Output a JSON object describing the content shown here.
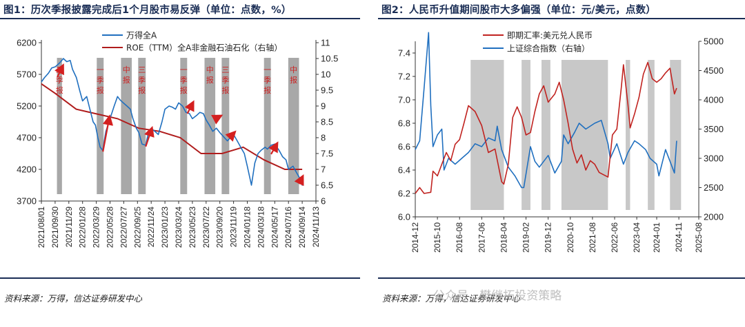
{
  "chart1": {
    "title": "图1：历次季报披露完成后1个月股市易反弹（单位：点数，%）",
    "source": "资料来源：万得，信达证券研发中心",
    "chart_data": {
      "type": "line",
      "legend": [
        "万得全A",
        "ROE（TTM）全A非金融石油石化（右轴）"
      ],
      "legend_position": "top-right",
      "colors": {
        "wind": "#1f6fbf",
        "roe": "#b01c1c",
        "band": "#a8a8a8",
        "arrow": "#d42020"
      },
      "ylim_left": [
        3700,
        6200
      ],
      "yticks_left": [
        "6200",
        "5700",
        "5200",
        "4700",
        "4200",
        "3700"
      ],
      "ytick_values_left": [
        6200,
        5700,
        5200,
        4700,
        4200,
        3700
      ],
      "ylim_right": [
        6,
        11
      ],
      "yticks_right": [
        "11",
        "10.5",
        "10",
        "9.5",
        "9",
        "8.5",
        "8",
        "7.5",
        "7",
        "6.5",
        "6"
      ],
      "ytick_values_right": [
        11,
        10.5,
        10,
        9.5,
        9,
        8.5,
        8,
        7.5,
        7,
        6.5,
        6
      ],
      "xlim": [
        "2021/08/01",
        "2024/11/13"
      ],
      "xticks": [
        "2021/08/01",
        "2021/09/30",
        "2021/11/29",
        "2022/01/28",
        "2022/03/29",
        "2022/05/28",
        "2022/07/27",
        "2022/09/25",
        "2022/11/24",
        "2023/01/23",
        "2023/03/24",
        "2023/05/23",
        "2023/07/22",
        "2023/09/20",
        "2023/11/19",
        "2024/01/18",
        "2024/03/18",
        "2024/05/17",
        "2024/07/16",
        "2024/09/14",
        "2024/11/13"
      ],
      "report_bands": [
        {
          "start": "2021/10/08",
          "end": "2021/10/30",
          "label": "三季报"
        },
        {
          "start": "2022/03/31",
          "end": "2022/04/30",
          "label": "一季报"
        },
        {
          "start": "2022/07/15",
          "end": "2022/08/31",
          "label": "中报"
        },
        {
          "start": "2022/09/28",
          "end": "2022/10/31",
          "label": "三季报"
        },
        {
          "start": "2023/03/31",
          "end": "2023/04/30",
          "label": "一季报"
        },
        {
          "start": "2023/07/15",
          "end": "2023/08/31",
          "label": "中报"
        },
        {
          "start": "2023/09/28",
          "end": "2023/10/31",
          "label": "三季报"
        },
        {
          "start": "2024/03/31",
          "end": "2024/04/30",
          "label": "一季报"
        },
        {
          "start": "2024/07/15",
          "end": "2024/08/31",
          "label": "中报"
        }
      ],
      "wind_all_a": {
        "x": [
          "2021/08/01",
          "2021/08/15",
          "2021/09/01",
          "2021/09/15",
          "2021/10/01",
          "2021/10/20",
          "2021/11/05",
          "2021/11/20",
          "2021/12/05",
          "2021/12/15",
          "2022/01/01",
          "2022/01/15",
          "2022/01/28",
          "2022/02/15",
          "2022/03/01",
          "2022/03/15",
          "2022/03/25",
          "2022/04/05",
          "2022/04/15",
          "2022/04/26",
          "2022/05/10",
          "2022/05/28",
          "2022/06/15",
          "2022/06/30",
          "2022/07/10",
          "2022/07/25",
          "2022/08/10",
          "2022/08/25",
          "2022/09/05",
          "2022/09/20",
          "2022/10/01",
          "2022/10/15",
          "2022/10/31",
          "2022/11/10",
          "2022/11/24",
          "2022/12/10",
          "2022/12/25",
          "2023/01/10",
          "2023/01/23",
          "2023/02/10",
          "2023/02/25",
          "2023/03/10",
          "2023/03/24",
          "2023/04/10",
          "2023/04/25",
          "2023/05/10",
          "2023/05/23",
          "2023/06/10",
          "2023/06/25",
          "2023/07/10",
          "2023/07/22",
          "2023/08/05",
          "2023/08/20",
          "2023/09/05",
          "2023/09/20",
          "2023/10/05",
          "2023/10/23",
          "2023/11/05",
          "2023/11/19",
          "2023/12/05",
          "2023/12/20",
          "2024/01/05",
          "2024/01/18",
          "2024/02/05",
          "2024/02/20",
          "2024/03/05",
          "2024/03/18",
          "2024/04/05",
          "2024/04/15",
          "2024/05/01",
          "2024/05/17",
          "2024/06/05",
          "2024/06/20",
          "2024/07/05",
          "2024/07/16",
          "2024/08/05",
          "2024/08/20",
          "2024/09/05",
          "2024/09/14",
          "2024/09/18"
        ],
        "values": [
          5580,
          5650,
          5720,
          5800,
          5820,
          5880,
          5950,
          5900,
          5920,
          5780,
          5650,
          5450,
          5280,
          5350,
          5150,
          4950,
          4900,
          4700,
          4550,
          4500,
          4800,
          5000,
          5200,
          5350,
          5300,
          5250,
          5200,
          5150,
          5000,
          4850,
          4780,
          4600,
          4580,
          4750,
          4850,
          4800,
          4750,
          4950,
          5150,
          5200,
          5180,
          5150,
          5250,
          5200,
          5100,
          5080,
          5000,
          5050,
          5100,
          5080,
          4980,
          4900,
          4800,
          4850,
          4780,
          4720,
          4650,
          4700,
          4750,
          4650,
          4550,
          4450,
          4250,
          3950,
          4300,
          4450,
          4500,
          4550,
          4520,
          4580,
          4600,
          4500,
          4400,
          4350,
          4200,
          4250,
          4150,
          4050,
          3950,
          4000
        ]
      },
      "roe_ttm": {
        "x": [
          "2021/08/01",
          "2021/09/30",
          "2021/12/31",
          "2022/03/31",
          "2022/06/30",
          "2022/09/30",
          "2022/12/31",
          "2023/03/31",
          "2023/06/30",
          "2023/09/30",
          "2023/12/31",
          "2024/03/31",
          "2024/06/30",
          "2024/09/14"
        ],
        "values": [
          9.7,
          9.4,
          8.9,
          8.75,
          8.6,
          8.3,
          8.2,
          8.0,
          7.5,
          7.5,
          7.7,
          7.3,
          7.0,
          7.0
        ]
      },
      "rebound_arrows": [
        {
          "from": "2021/10/10",
          "from_value": 5660,
          "to": "2021/11/02",
          "to_value": 5830
        },
        {
          "from": "2022/04/27",
          "from_value": 4480,
          "to": "2022/05/25",
          "to_value": 5020
        },
        {
          "from": "2022/10/31",
          "from_value": 4560,
          "to": "2022/11/26",
          "to_value": 4840
        },
        {
          "from": "2023/05/01",
          "from_value": 5080,
          "to": "2023/05/25",
          "to_value": 5250
        },
        {
          "from": "2023/09/01",
          "from_value": 5000,
          "to": "2023/09/22",
          "to_value": 5040
        },
        {
          "from": "2023/11/01",
          "from_value": 4700,
          "to": "2023/11/22",
          "to_value": 4780
        },
        {
          "from": "2024/05/01",
          "from_value": 4440,
          "to": "2024/05/26",
          "to_value": 4600
        },
        {
          "from": "2024/08/31",
          "from_value": 3970,
          "to": "2024/09/15",
          "to_value": 4080
        }
      ]
    }
  },
  "chart2": {
    "title": "图2：人民币升值期间股市大多偏强（单位：元/美元，点数）",
    "source": "资料来源：万得，信达证券研发中心",
    "chart_data": {
      "type": "line",
      "legend": [
        "即期汇率:美元兑人民币",
        "上证综合指数（右轴）"
      ],
      "legend_position": "top-center",
      "colors": {
        "usdcny": "#c0221f",
        "sse": "#1f6fbf",
        "band": "#c8c8c8"
      },
      "ylim_left": [
        6.0,
        7.5
      ],
      "yticks_left": [
        "7.4",
        "7.2",
        "7.0",
        "6.8",
        "6.6",
        "6.4",
        "6.2",
        "6.0"
      ],
      "ytick_values_left": [
        7.4,
        7.2,
        7.0,
        6.8,
        6.6,
        6.4,
        6.2,
        6.0
      ],
      "ylim_right": [
        2000,
        5000
      ],
      "yticks_right": [
        "5000",
        "4500",
        "4000",
        "3500",
        "3000",
        "2500",
        "2000"
      ],
      "ytick_values_right": [
        5000,
        4500,
        4000,
        3500,
        3000,
        2500,
        2000
      ],
      "xlim": [
        "2014-12",
        "2025-08"
      ],
      "xticks": [
        "2014-12",
        "2015-10",
        "2016-08",
        "2017-06",
        "2018-04",
        "2019-02",
        "2019-12",
        "2020-10",
        "2021-08",
        "2022-06",
        "2023-04",
        "2024-01",
        "2024-11",
        "2025-08"
      ],
      "appreciation_bands": [
        {
          "start": "2017-01",
          "end": "2018-04"
        },
        {
          "start": "2018-12",
          "end": "2019-04"
        },
        {
          "start": "2019-09",
          "end": "2020-01"
        },
        {
          "start": "2020-06",
          "end": "2022-03"
        },
        {
          "start": "2022-11",
          "end": "2023-01"
        },
        {
          "start": "2023-09",
          "end": "2023-12"
        },
        {
          "start": "2024-07",
          "end": "2024-12"
        }
      ],
      "usdcny": {
        "x": [
          "2014-12",
          "2015-02",
          "2015-04",
          "2015-07",
          "2015-08",
          "2015-10",
          "2015-12",
          "2016-02",
          "2016-04",
          "2016-06",
          "2016-08",
          "2016-10",
          "2016-12",
          "2017-03",
          "2017-06",
          "2017-09",
          "2017-12",
          "2018-03",
          "2018-04",
          "2018-06",
          "2018-08",
          "2018-10",
          "2018-12",
          "2019-02",
          "2019-04",
          "2019-06",
          "2019-08",
          "2019-10",
          "2019-12",
          "2020-03",
          "2020-05",
          "2020-07",
          "2020-09",
          "2020-11",
          "2021-01",
          "2021-03",
          "2021-05",
          "2021-07",
          "2021-09",
          "2021-11",
          "2022-01",
          "2022-03",
          "2022-05",
          "2022-07",
          "2022-09",
          "2022-10",
          "2022-12",
          "2023-01",
          "2023-03",
          "2023-05",
          "2023-07",
          "2023-09",
          "2023-11",
          "2024-01",
          "2024-03",
          "2024-05",
          "2024-07",
          "2024-09",
          "2024-10"
        ],
        "values": [
          6.2,
          6.25,
          6.2,
          6.21,
          6.39,
          6.35,
          6.45,
          6.55,
          6.48,
          6.62,
          6.66,
          6.8,
          6.95,
          6.9,
          6.78,
          6.55,
          6.58,
          6.3,
          6.28,
          6.45,
          6.85,
          6.94,
          6.85,
          6.7,
          6.72,
          6.9,
          7.05,
          7.12,
          6.98,
          7.05,
          7.15,
          7.0,
          6.8,
          6.58,
          6.46,
          6.53,
          6.4,
          6.48,
          6.45,
          6.38,
          6.36,
          6.34,
          6.7,
          6.75,
          7.1,
          7.3,
          6.96,
          6.76,
          6.88,
          7.02,
          7.22,
          7.32,
          7.18,
          7.15,
          7.18,
          7.23,
          7.27,
          7.05,
          7.1
        ]
      },
      "sse_composite": {
        "x": [
          "2014-12",
          "2015-02",
          "2015-04",
          "2015-06",
          "2015-07",
          "2015-08",
          "2015-10",
          "2015-12",
          "2016-01",
          "2016-03",
          "2016-06",
          "2016-09",
          "2016-12",
          "2017-03",
          "2017-06",
          "2017-09",
          "2017-12",
          "2018-01",
          "2018-03",
          "2018-06",
          "2018-09",
          "2018-12",
          "2019-01",
          "2019-04",
          "2019-06",
          "2019-08",
          "2019-12",
          "2020-03",
          "2020-06",
          "2020-07",
          "2020-09",
          "2020-12",
          "2021-02",
          "2021-05",
          "2021-09",
          "2021-12",
          "2022-03",
          "2022-04",
          "2022-07",
          "2022-10",
          "2022-12",
          "2023-03",
          "2023-05",
          "2023-08",
          "2023-10",
          "2024-01",
          "2024-02",
          "2024-05",
          "2024-07",
          "2024-09",
          "2024-10"
        ],
        "values": [
          3150,
          3300,
          4200,
          5150,
          3900,
          3200,
          3400,
          3500,
          2800,
          3000,
          2900,
          3000,
          3100,
          3250,
          3200,
          3350,
          3300,
          3550,
          3150,
          2850,
          2700,
          2500,
          2500,
          3200,
          2950,
          2850,
          3050,
          2750,
          2950,
          3400,
          3250,
          3450,
          3600,
          3500,
          3600,
          3650,
          3250,
          3000,
          3250,
          2900,
          3100,
          3300,
          3250,
          3150,
          3000,
          2900,
          2700,
          3150,
          2950,
          2750,
          3300
        ]
      }
    }
  },
  "watermark": {
    "text": "公众号 · 樊继拓投资策略"
  }
}
